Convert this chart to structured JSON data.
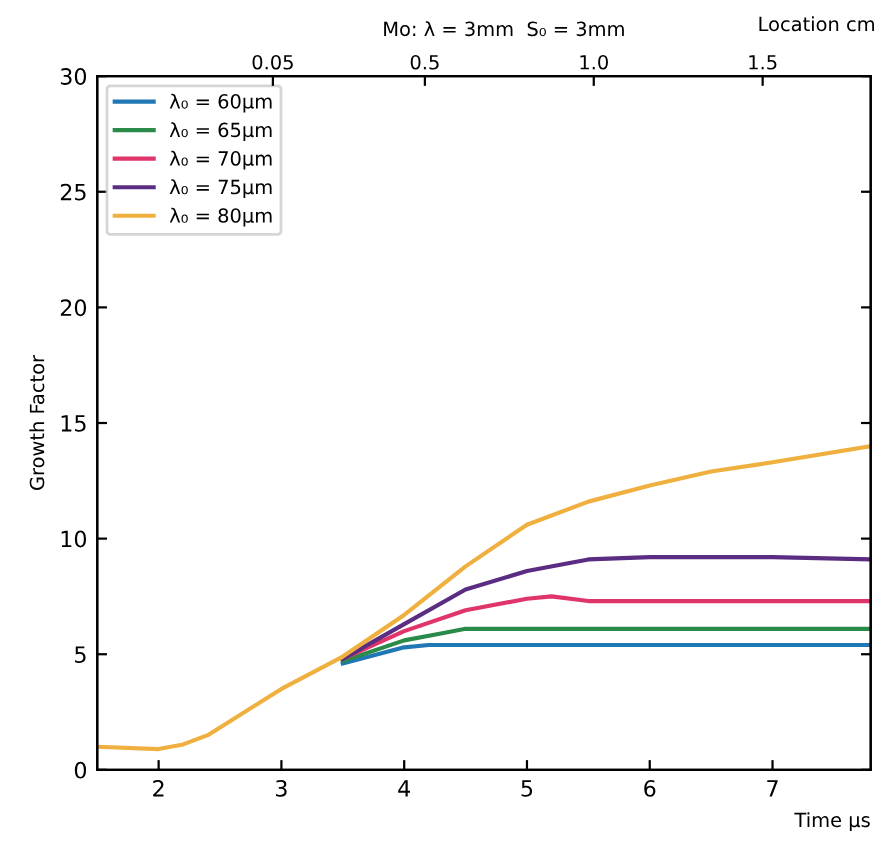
{
  "chart_data": {
    "type": "line",
    "title": "Mo: λ = 3mm  S₀ = 3mm",
    "xlabel": "Time μs",
    "ylabel": "Growth Factor",
    "x2label": "Location cm",
    "xlim": [
      1.5,
      7.8
    ],
    "xticks": [
      2,
      3,
      4,
      5,
      6,
      7
    ],
    "ylim": [
      0,
      30
    ],
    "yticks": [
      0,
      5,
      10,
      15,
      20,
      25,
      30
    ],
    "x2lim": [
      -0.47,
      1.82
    ],
    "x2ticks": [
      0.05,
      0.5,
      {
        "value": 1.0,
        "label": "1.0"
      },
      1.5
    ],
    "legend": "top left",
    "grid": false,
    "marker": "none",
    "line_style": "solid",
    "series": [
      {
        "name": "λ₀ = 60μm",
        "color": "#1f77b4",
        "x": [
          3.5,
          4.0,
          4.2,
          4.5,
          5.5,
          6.5,
          7.8
        ],
        "values": [
          4.6,
          5.3,
          5.4,
          5.4,
          5.4,
          5.4,
          5.4
        ]
      },
      {
        "name": "λ₀ = 65μm",
        "color": "#2a8a4a",
        "x": [
          3.5,
          4.0,
          4.3,
          4.5,
          5.5,
          6.5,
          7.8
        ],
        "values": [
          4.7,
          5.6,
          5.9,
          6.1,
          6.1,
          6.1,
          6.1
        ]
      },
      {
        "name": "λ₀ = 70μm",
        "color": "#e0356a",
        "x": [
          3.5,
          4.0,
          4.5,
          5.0,
          5.2,
          5.5,
          6.5,
          7.8
        ],
        "values": [
          4.8,
          6.0,
          6.9,
          7.4,
          7.5,
          7.3,
          7.3,
          7.3
        ]
      },
      {
        "name": "λ₀ = 75μm",
        "color": "#5a2d82",
        "x": [
          3.5,
          4.0,
          4.5,
          5.0,
          5.5,
          6.0,
          7.0,
          7.8
        ],
        "values": [
          4.8,
          6.3,
          7.8,
          8.6,
          9.1,
          9.2,
          9.2,
          9.1
        ]
      },
      {
        "name": "λ₀ = 80μm",
        "color": "#f0b040",
        "x": [
          1.5,
          2.0,
          2.2,
          2.4,
          3.0,
          3.5,
          4.0,
          4.5,
          5.0,
          5.5,
          6.0,
          6.5,
          7.0,
          7.8
        ],
        "values": [
          1.0,
          0.9,
          1.1,
          1.5,
          3.5,
          4.9,
          6.7,
          8.8,
          10.6,
          11.6,
          12.3,
          12.9,
          13.3,
          14.0
        ]
      }
    ]
  }
}
